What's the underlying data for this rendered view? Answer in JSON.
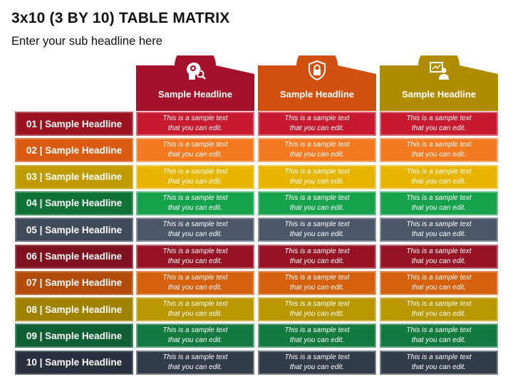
{
  "title": "3x10 (3 BY 10) TABLE MATRIX",
  "subtitle": "Enter your sub headline here",
  "columns": [
    {
      "label": "Sample Headline",
      "color": "#a5112a",
      "icon": "head-gear-icon"
    },
    {
      "label": "Sample Headline",
      "color": "#d2500f",
      "icon": "shield-lock-icon"
    },
    {
      "label": "Sample Headline",
      "color": "#b08d00",
      "icon": "presenter-board-icon"
    }
  ],
  "rows": [
    {
      "label": "01 | Sample Headline",
      "label_color": "#9b1320",
      "cell_color": "#c81a2e"
    },
    {
      "label": "02 | Sample Headline",
      "label_color": "#da5a12",
      "cell_color": "#f37a20"
    },
    {
      "label": "03 | Sample Headline",
      "label_color": "#bf9b00",
      "cell_color": "#e7b500"
    },
    {
      "label": "04 | Sample Headline",
      "label_color": "#117238",
      "cell_color": "#15a24b"
    },
    {
      "label": "05 | Sample Headline",
      "label_color": "#3f4a5a",
      "cell_color": "#4c5869"
    },
    {
      "label": "06 | Sample Headline",
      "label_color": "#7e1020",
      "cell_color": "#961325"
    },
    {
      "label": "07 | Sample Headline",
      "label_color": "#b34c0b",
      "cell_color": "#d5600e"
    },
    {
      "label": "08 | Sample Headline",
      "label_color": "#9f8200",
      "cell_color": "#b89700"
    },
    {
      "label": "09 | Sample Headline",
      "label_color": "#0e5f33",
      "cell_color": "#127a3e"
    },
    {
      "label": "10 | Sample Headline",
      "label_color": "#28303d",
      "cell_color": "#323b49"
    }
  ],
  "cell_text": "This is a sample text that you can edit."
}
